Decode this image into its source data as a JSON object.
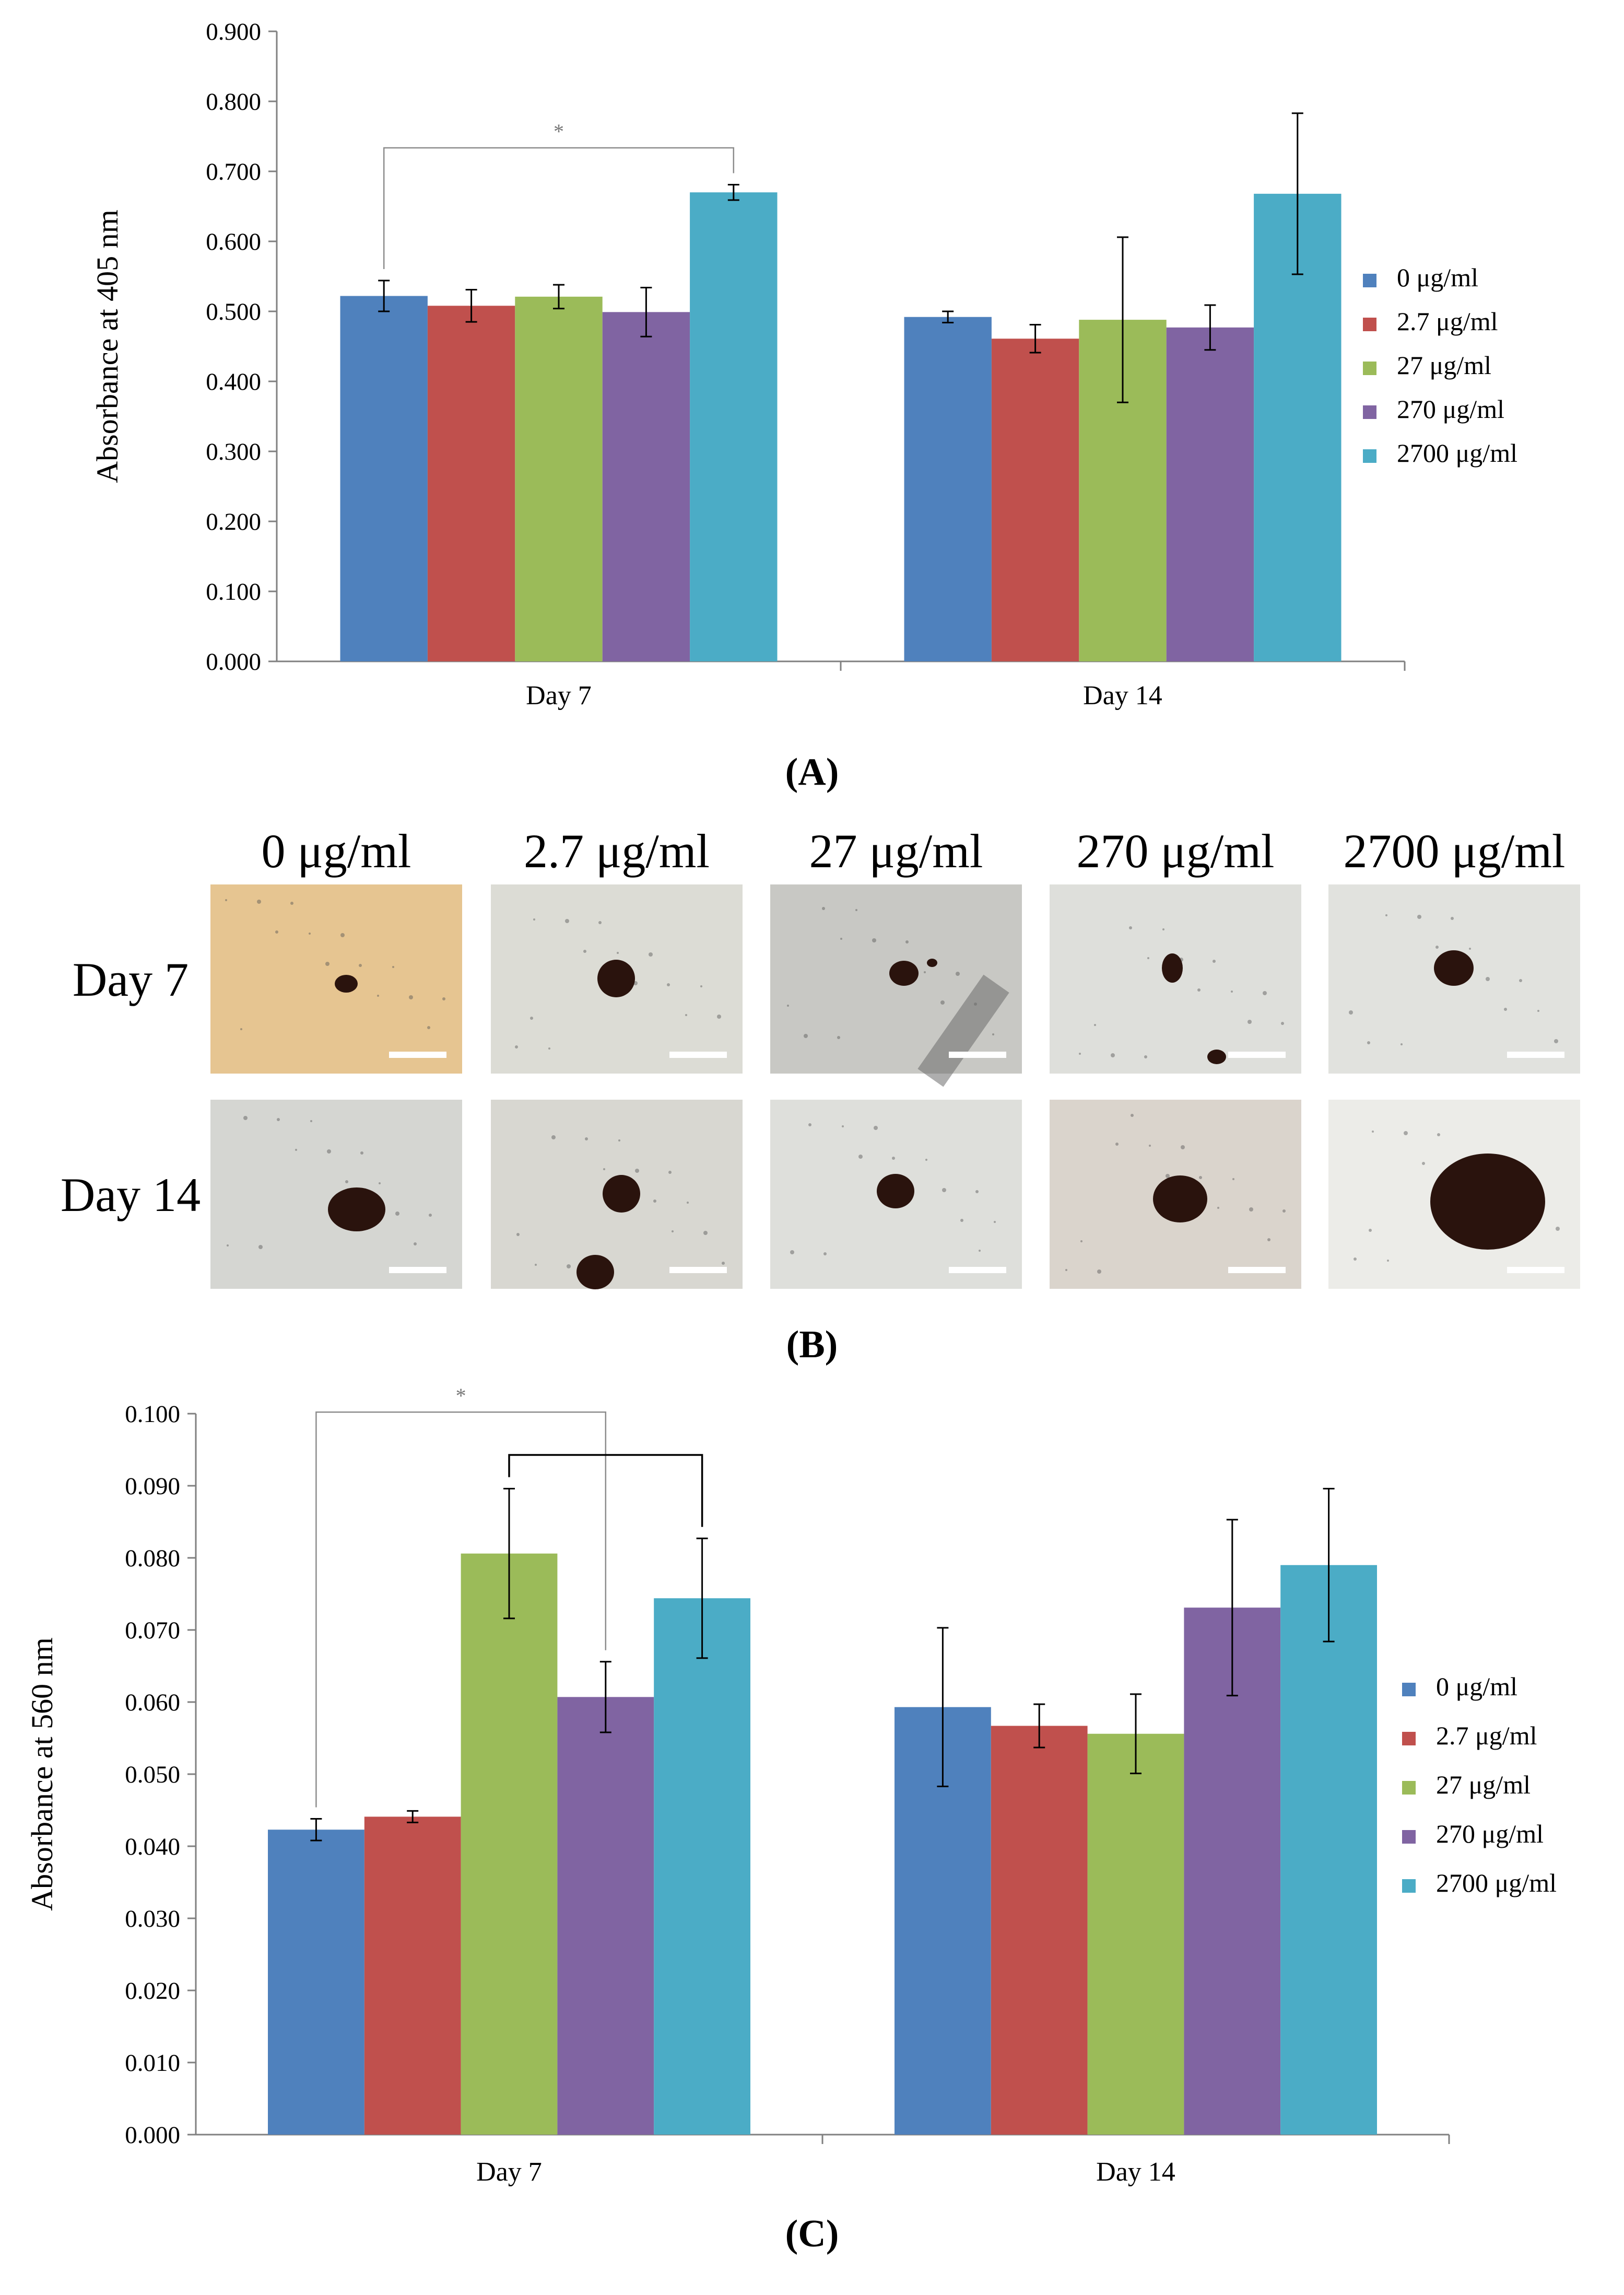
{
  "colors": {
    "series": [
      "#4f81bd",
      "#c0504d",
      "#9bbb59",
      "#8064a2",
      "#4bacc6"
    ],
    "axis": "#808080",
    "bracket_gray": "#8c8c8c",
    "bracket_black": "#000000",
    "photo_tints": [
      "#e6c591",
      "#dcdcd5",
      "#c8c8c4",
      "#dedfdb",
      "#e1e2de",
      "#d5d6d2",
      "#d8d7d1",
      "#dedfdb",
      "#dad4cc",
      "#ecece8"
    ]
  },
  "chart_data": [
    {
      "type": "bar",
      "panel_label": "A",
      "ylabel": "Absorbance at 405 nm",
      "xlabel": "",
      "ylim": [
        0,
        0.9
      ],
      "yticks": [
        "0.000",
        "0.100",
        "0.200",
        "0.300",
        "0.400",
        "0.500",
        "0.600",
        "0.700",
        "0.800",
        "0.900"
      ],
      "categories": [
        "Day 7",
        "Day 14"
      ],
      "series": [
        {
          "name": "0 μg/ml",
          "values": [
            0.522,
            0.492
          ],
          "errors": [
            0.022,
            0.008
          ]
        },
        {
          "name": "2.7 μg/ml",
          "values": [
            0.508,
            0.461
          ],
          "errors": [
            0.023,
            0.02
          ]
        },
        {
          "name": "27 μg/ml",
          "values": [
            0.521,
            0.488
          ],
          "errors": [
            0.017,
            0.118
          ]
        },
        {
          "name": "270 μg/ml",
          "values": [
            0.499,
            0.477
          ],
          "errors": [
            0.035,
            0.032
          ]
        },
        {
          "name": "2700 μg/ml",
          "values": [
            0.67,
            0.668
          ],
          "errors": [
            0.011,
            0.115
          ]
        }
      ],
      "annotations": [
        {
          "text": "*",
          "from": [
            0,
            0
          ],
          "to": [
            0,
            4
          ],
          "style": "gray"
        }
      ],
      "legend": "right"
    },
    {
      "type": "bar",
      "panel_label": "C",
      "ylabel": "Absorbance at 560 nm",
      "xlabel": "",
      "ylim": [
        0,
        0.1
      ],
      "yticks": [
        "0.000",
        "0.010",
        "0.020",
        "0.030",
        "0.040",
        "0.050",
        "0.060",
        "0.070",
        "0.080",
        "0.090",
        "0.100"
      ],
      "categories": [
        "Day 7",
        "Day 14"
      ],
      "series": [
        {
          "name": "0 μg/ml",
          "values": [
            0.0423,
            0.0593
          ],
          "errors": [
            0.0015,
            0.011
          ]
        },
        {
          "name": "2.7 μg/ml",
          "values": [
            0.0441,
            0.0567
          ],
          "errors": [
            0.0008,
            0.003
          ]
        },
        {
          "name": "27 μg/ml",
          "values": [
            0.0806,
            0.0556
          ],
          "errors": [
            0.009,
            0.0055
          ]
        },
        {
          "name": "270 μg/ml",
          "values": [
            0.0607,
            0.0731
          ],
          "errors": [
            0.0049,
            0.0122
          ]
        },
        {
          "name": "2700 μg/ml",
          "values": [
            0.0744,
            0.079
          ],
          "errors": [
            0.0083,
            0.0106
          ]
        }
      ],
      "annotations": [
        {
          "text": "*",
          "from": [
            0,
            0
          ],
          "to": [
            0,
            3
          ],
          "style": "gray"
        },
        {
          "text": "",
          "from": [
            0,
            2
          ],
          "to": [
            0,
            4
          ],
          "style": "black"
        }
      ],
      "legend": "right"
    }
  ],
  "panel_b": {
    "label": "B",
    "columns": [
      "0 μg/ml",
      "2.7 μg/ml",
      "27 μg/ml",
      "270 μg/ml",
      "2700 μg/ml"
    ],
    "rows": [
      "Day 7",
      "Day 14"
    ]
  }
}
